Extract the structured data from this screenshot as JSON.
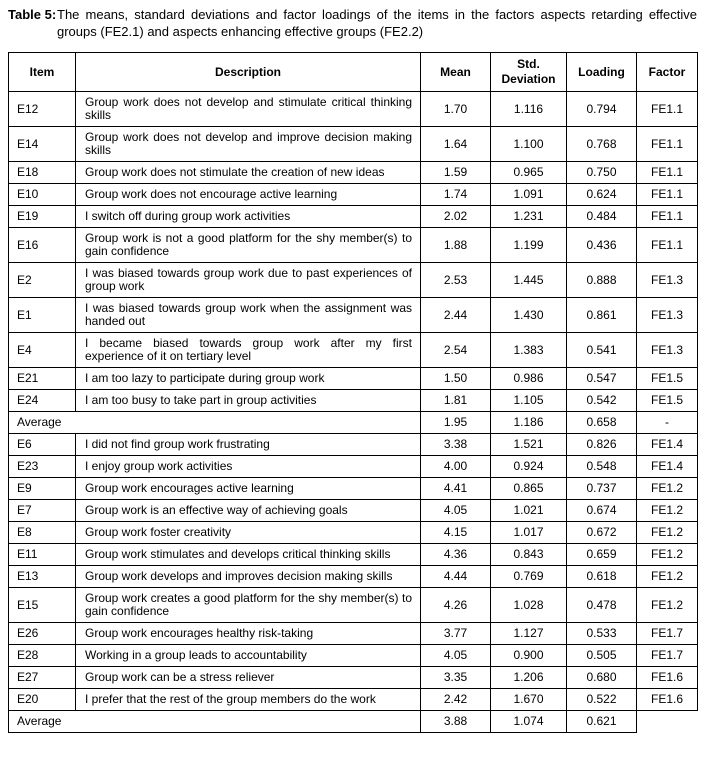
{
  "caption": {
    "label": "Table 5:",
    "text": "The means, standard deviations and factor loadings of the items in the factors aspects retarding effective groups (FE2.1) and aspects enhancing effective groups (FE2.2)"
  },
  "table": {
    "headers": [
      "Item",
      "Description",
      "Mean",
      "Std. Deviation",
      "Loading",
      "Factor"
    ],
    "rows": [
      {
        "item": "E12",
        "description": "Group work does not develop and stimulate critical thinking skills",
        "mean": "1.70",
        "std": "1.116",
        "loading": "0.794",
        "factor": "FE1.1"
      },
      {
        "item": "E14",
        "description": "Group work does not develop and improve decision making skills",
        "mean": "1.64",
        "std": "1.100",
        "loading": "0.768",
        "factor": "FE1.1"
      },
      {
        "item": "E18",
        "description": "Group work does not stimulate the creation of new ideas",
        "mean": "1.59",
        "std": "0.965",
        "loading": "0.750",
        "factor": "FE1.1"
      },
      {
        "item": "E10",
        "description": "Group work does not encourage active learning",
        "mean": "1.74",
        "std": "1.091",
        "loading": "0.624",
        "factor": "FE1.1"
      },
      {
        "item": "E19",
        "description": "I switch off during group work activities",
        "mean": "2.02",
        "std": "1.231",
        "loading": "0.484",
        "factor": "FE1.1"
      },
      {
        "item": "E16",
        "description": "Group work is not a good platform for the shy member(s) to gain confidence",
        "mean": "1.88",
        "std": "1.199",
        "loading": "0.436",
        "factor": "FE1.1"
      },
      {
        "item": "E2",
        "description": "I was biased towards group work due to past experiences of group work",
        "mean": "2.53",
        "std": "1.445",
        "loading": "0.888",
        "factor": "FE1.3"
      },
      {
        "item": "E1",
        "description": "I was biased towards group work when the assignment was handed out",
        "mean": "2.44",
        "std": "1.430",
        "loading": "0.861",
        "factor": "FE1.3"
      },
      {
        "item": "E4",
        "description": "I became biased towards group work after my first experience of it on tertiary level",
        "mean": "2.54",
        "std": "1.383",
        "loading": "0.541",
        "factor": "FE1.3"
      },
      {
        "item": "E21",
        "description": "I am too lazy to participate during group work",
        "mean": "1.50",
        "std": "0.986",
        "loading": "0.547",
        "factor": "FE1.5"
      },
      {
        "item": "E24",
        "description": "I am too busy to take part in group activities",
        "mean": "1.81",
        "std": "1.105",
        "loading": "0.542",
        "factor": "FE1.5"
      },
      {
        "type": "average",
        "item": "Average",
        "mean": "1.95",
        "std": "1.186",
        "loading": "0.658",
        "factor": "-"
      },
      {
        "item": "E6",
        "description": "I did not find group work frustrating",
        "mean": "3.38",
        "std": "1.521",
        "loading": "0.826",
        "factor": "FE1.4"
      },
      {
        "item": "E23",
        "description": "I enjoy group work activities",
        "mean": "4.00",
        "std": "0.924",
        "loading": "0.548",
        "factor": "FE1.4"
      },
      {
        "item": "E9",
        "description": "Group work encourages active learning",
        "mean": "4.41",
        "std": "0.865",
        "loading": "0.737",
        "factor": "FE1.2"
      },
      {
        "item": "E7",
        "description": "Group work is an effective way of achieving goals",
        "mean": "4.05",
        "std": "1.021",
        "loading": "0.674",
        "factor": "FE1.2"
      },
      {
        "item": "E8",
        "description": "Group work foster creativity",
        "mean": "4.15",
        "std": "1.017",
        "loading": "0.672",
        "factor": "FE1.2"
      },
      {
        "item": "E11",
        "description": "Group work stimulates and develops critical thinking skills",
        "mean": "4.36",
        "std": "0.843",
        "loading": "0.659",
        "factor": "FE1.2"
      },
      {
        "item": "E13",
        "description": "Group work develops and improves decision making skills",
        "mean": "4.44",
        "std": "0.769",
        "loading": "0.618",
        "factor": "FE1.2"
      },
      {
        "item": "E15",
        "description": "Group work creates a good platform for the shy member(s) to gain confidence",
        "mean": "4.26",
        "std": "1.028",
        "loading": "0.478",
        "factor": "FE1.2"
      },
      {
        "item": "E26",
        "description": "Group work encourages healthy risk-taking",
        "mean": "3.77",
        "std": "1.127",
        "loading": "0.533",
        "factor": "FE1.7"
      },
      {
        "item": "E28",
        "description": "Working in a group leads to accountability",
        "mean": "4.05",
        "std": "0.900",
        "loading": "0.505",
        "factor": "FE1.7"
      },
      {
        "item": "E27",
        "description": "Group work can be a stress reliever",
        "mean": "3.35",
        "std": "1.206",
        "loading": "0.680",
        "factor": "FE1.6"
      },
      {
        "item": "E20",
        "description": "I prefer that the rest of the group members do the work",
        "mean": "2.42",
        "std": "1.670",
        "loading": "0.522",
        "factor": "FE1.6"
      },
      {
        "type": "average",
        "item": "Average",
        "mean": "3.88",
        "std": "1.074",
        "loading": "0.621",
        "factor": null
      }
    ]
  }
}
